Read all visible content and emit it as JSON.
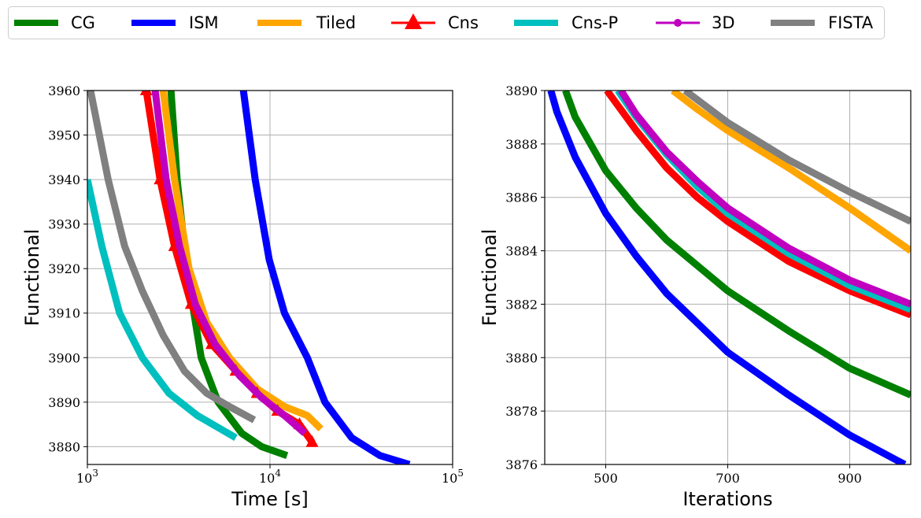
{
  "legend": {
    "placement": "top",
    "entries": [
      {
        "name": "CG",
        "color": "#008000",
        "marker": "none"
      },
      {
        "name": "ISM",
        "color": "#0000ff",
        "marker": "none"
      },
      {
        "name": "Tiled",
        "color": "#ffa500",
        "marker": "none"
      },
      {
        "name": "Cns",
        "color": "#ff0000",
        "marker": "triangle"
      },
      {
        "name": "Cns-P",
        "color": "#00bfbf",
        "marker": "none"
      },
      {
        "name": "3D",
        "color": "#bf00bf",
        "marker": "circle"
      },
      {
        "name": "FISTA",
        "color": "#808080",
        "marker": "none"
      }
    ]
  },
  "chart_data": [
    {
      "type": "line",
      "xlabel": "Time [s]",
      "ylabel": "Functional",
      "xscale": "log",
      "xlim": [
        1000,
        100000
      ],
      "ylim": [
        3876,
        3960
      ],
      "xticks": [
        1000,
        10000,
        100000
      ],
      "xtick_labels": [
        {
          "base": "10",
          "exp": "3"
        },
        {
          "base": "10",
          "exp": "4"
        },
        {
          "base": "10",
          "exp": "5"
        }
      ],
      "yticks": [
        3880,
        3890,
        3900,
        3910,
        3920,
        3930,
        3940,
        3950,
        3960
      ],
      "grid": true,
      "series": [
        {
          "name": "CG",
          "color": "#008000",
          "points": [
            [
              2870,
              3960
            ],
            [
              3100,
              3940
            ],
            [
              3500,
              3920
            ],
            [
              4200,
              3900
            ],
            [
              5200,
              3890
            ],
            [
              7000,
              3883
            ],
            [
              9000,
              3880
            ],
            [
              12400,
              3878
            ]
          ]
        },
        {
          "name": "ISM",
          "color": "#0000ff",
          "points": [
            [
              7150,
              3960
            ],
            [
              8300,
              3940
            ],
            [
              9900,
              3922
            ],
            [
              12000,
              3910
            ],
            [
              16000,
              3900
            ],
            [
              20000,
              3890
            ],
            [
              28000,
              3882
            ],
            [
              40000,
              3878
            ],
            [
              58000,
              3876
            ]
          ]
        },
        {
          "name": "Tiled",
          "color": "#ffa500",
          "points": [
            [
              2600,
              3960
            ],
            [
              3000,
              3940
            ],
            [
              3600,
              3920
            ],
            [
              4500,
              3908
            ],
            [
              6000,
              3900
            ],
            [
              8500,
              3893
            ],
            [
              12000,
              3889
            ],
            [
              16000,
              3887
            ],
            [
              19000,
              3884
            ]
          ]
        },
        {
          "name": "Cns",
          "color": "#ff0000",
          "points": [
            [
              2100,
              3960
            ],
            [
              2500,
              3940
            ],
            [
              3000,
              3925
            ],
            [
              3700,
              3912
            ],
            [
              4800,
              3903
            ],
            [
              6500,
              3897
            ],
            [
              8500,
              3892
            ],
            [
              11000,
              3888
            ],
            [
              14500,
              3885
            ],
            [
              17000,
              3881
            ]
          ]
        },
        {
          "name": "Cns-P",
          "color": "#00bfbf",
          "points": [
            [
              1000,
              3940
            ],
            [
              1200,
              3925
            ],
            [
              1500,
              3910
            ],
            [
              2000,
              3900
            ],
            [
              2800,
              3892
            ],
            [
              4000,
              3887
            ],
            [
              6500,
              3882
            ]
          ]
        },
        {
          "name": "3D",
          "color": "#bf00bf",
          "points": [
            [
              2350,
              3960
            ],
            [
              2700,
              3940
            ],
            [
              3200,
              3925
            ],
            [
              3900,
              3912
            ],
            [
              5000,
              3903
            ],
            [
              6800,
              3896
            ],
            [
              9000,
              3891
            ],
            [
              12000,
              3887
            ],
            [
              15500,
              3883
            ]
          ]
        },
        {
          "name": "FISTA",
          "color": "#808080",
          "points": [
            [
              1040,
              3960
            ],
            [
              1300,
              3940
            ],
            [
              1600,
              3925
            ],
            [
              2000,
              3915
            ],
            [
              2600,
              3905
            ],
            [
              3400,
              3897
            ],
            [
              4500,
              3892
            ],
            [
              6000,
              3889
            ],
            [
              8200,
              3886
            ]
          ]
        }
      ]
    },
    {
      "type": "line",
      "xlabel": "Iterations",
      "ylabel": "Functional",
      "xlim": [
        400,
        1000
      ],
      "ylim": [
        3876,
        3890
      ],
      "xticks": [
        500,
        700,
        900
      ],
      "yticks": [
        3876,
        3878,
        3880,
        3882,
        3884,
        3886,
        3888,
        3890
      ],
      "grid": true,
      "series": [
        {
          "name": "CG",
          "color": "#008000",
          "points": [
            [
              434,
              3890
            ],
            [
              450,
              3889
            ],
            [
              500,
              3887
            ],
            [
              550,
              3885.6
            ],
            [
              600,
              3884.4
            ],
            [
              700,
              3882.5
            ],
            [
              800,
              3881
            ],
            [
              900,
              3879.6
            ],
            [
              1000,
              3878.6
            ]
          ]
        },
        {
          "name": "ISM",
          "color": "#0000ff",
          "points": [
            [
              410,
              3890
            ],
            [
              420,
              3889.2
            ],
            [
              450,
              3887.5
            ],
            [
              500,
              3885.4
            ],
            [
              550,
              3883.8
            ],
            [
              600,
              3882.4
            ],
            [
              700,
              3880.2
            ],
            [
              800,
              3878.6
            ],
            [
              900,
              3877.1
            ],
            [
              990,
              3876
            ]
          ]
        },
        {
          "name": "Tiled",
          "color": "#ffa500",
          "points": [
            [
              610,
              3890
            ],
            [
              650,
              3889.3
            ],
            [
              700,
              3888.5
            ],
            [
              800,
              3887.1
            ],
            [
              900,
              3885.6
            ],
            [
              1000,
              3884
            ]
          ]
        },
        {
          "name": "Cns",
          "color": "#ff0000",
          "points": [
            [
              502,
              3890
            ],
            [
              550,
              3888.5
            ],
            [
              600,
              3887.1
            ],
            [
              650,
              3886
            ],
            [
              700,
              3885.1
            ],
            [
              800,
              3883.6
            ],
            [
              900,
              3882.5
            ],
            [
              1000,
              3881.6
            ]
          ]
        },
        {
          "name": "Cns-P",
          "color": "#00bfbf",
          "points": [
            [
              520,
              3890
            ],
            [
              550,
              3889
            ],
            [
              600,
              3887.6
            ],
            [
              650,
              3886.4
            ],
            [
              700,
              3885.4
            ],
            [
              800,
              3883.9
            ],
            [
              900,
              3882.7
            ],
            [
              1000,
              3881.8
            ]
          ]
        },
        {
          "name": "3D",
          "color": "#bf00bf",
          "points": [
            [
              525,
              3890
            ],
            [
              550,
              3889.1
            ],
            [
              600,
              3887.7
            ],
            [
              650,
              3886.6
            ],
            [
              700,
              3885.6
            ],
            [
              800,
              3884.1
            ],
            [
              900,
              3882.9
            ],
            [
              1000,
              3882
            ]
          ]
        },
        {
          "name": "FISTA",
          "color": "#808080",
          "points": [
            [
              630,
              3890
            ],
            [
              700,
              3888.8
            ],
            [
              800,
              3887.4
            ],
            [
              900,
              3886.2
            ],
            [
              1000,
              3885.1
            ]
          ]
        }
      ]
    }
  ]
}
